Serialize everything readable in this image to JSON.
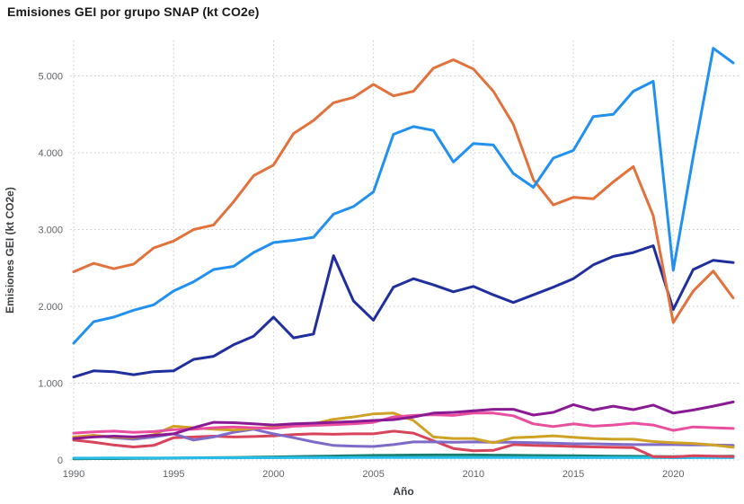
{
  "chart_data": {
    "type": "line",
    "title": "Emisiones GEI por grupo SNAP (kt CO2e)",
    "xlabel": "Año",
    "ylabel": "Emisiones GEI (kt CO2e)",
    "legend": "none",
    "grid": "dotted",
    "xlim": [
      1990,
      2023
    ],
    "ylim": [
      0,
      5500
    ],
    "x_tick_labels": [
      "1990",
      "1995",
      "2000",
      "2005",
      "2010",
      "2015",
      "2020"
    ],
    "x_tick_values": [
      1990,
      1995,
      2000,
      2005,
      2010,
      2015,
      2020
    ],
    "y_tick_labels": [
      "0",
      "1.000",
      "2.000",
      "3.000",
      "4.000",
      "5.000"
    ],
    "y_tick_values": [
      0,
      1000,
      2000,
      3000,
      4000,
      5000
    ],
    "x": [
      1990,
      1991,
      1992,
      1993,
      1994,
      1995,
      1996,
      1997,
      1998,
      1999,
      2000,
      2001,
      2002,
      2003,
      2004,
      2005,
      2006,
      2007,
      2008,
      2009,
      2010,
      2011,
      2012,
      2013,
      2014,
      2015,
      2016,
      2017,
      2018,
      2019,
      2020,
      2021,
      2022,
      2023
    ],
    "series": [
      {
        "name": "orange",
        "color": "#e2713c",
        "values": [
          2450,
          2560,
          2490,
          2550,
          2760,
          2850,
          3000,
          3060,
          3360,
          3700,
          3840,
          4250,
          4420,
          4650,
          4720,
          4890,
          4740,
          4800,
          5100,
          5210,
          5090,
          4800,
          4370,
          3650,
          3320,
          3420,
          3400,
          3620,
          3820,
          3180,
          1790,
          2200,
          2460,
          2110
        ]
      },
      {
        "name": "light-blue",
        "color": "#2190f0",
        "values": [
          1520,
          1800,
          1860,
          1950,
          2020,
          2200,
          2320,
          2480,
          2520,
          2700,
          2830,
          2860,
          2900,
          3200,
          3300,
          3490,
          4240,
          4340,
          4290,
          3880,
          4120,
          4100,
          3730,
          3550,
          3930,
          4030,
          4470,
          4500,
          4800,
          4930,
          2470,
          3950,
          5360,
          5170
        ]
      },
      {
        "name": "navy",
        "color": "#1f2f9e",
        "values": [
          1080,
          1160,
          1150,
          1110,
          1150,
          1160,
          1310,
          1350,
          1500,
          1610,
          1860,
          1590,
          1640,
          2660,
          2070,
          1820,
          2250,
          2360,
          2280,
          2190,
          2260,
          2150,
          2050,
          2150,
          2250,
          2360,
          2540,
          2650,
          2700,
          2790,
          1960,
          2480,
          2600,
          2570
        ]
      },
      {
        "name": "dark-purple",
        "color": "#8a1a93",
        "values": [
          280,
          300,
          310,
          300,
          320,
          340,
          420,
          490,
          485,
          470,
          455,
          470,
          480,
          490,
          500,
          515,
          525,
          560,
          610,
          620,
          640,
          660,
          660,
          585,
          620,
          720,
          650,
          700,
          655,
          715,
          610,
          650,
          700,
          755
        ]
      },
      {
        "name": "pink",
        "color": "#ea4f9f",
        "values": [
          350,
          365,
          375,
          360,
          370,
          395,
          400,
          420,
          430,
          420,
          410,
          440,
          450,
          460,
          470,
          490,
          560,
          580,
          590,
          580,
          610,
          610,
          575,
          470,
          435,
          470,
          440,
          455,
          480,
          455,
          385,
          430,
          420,
          410
        ]
      },
      {
        "name": "mustard",
        "color": "#cfa226",
        "values": [
          300,
          320,
          300,
          290,
          330,
          440,
          420,
          400,
          390,
          410,
          430,
          450,
          470,
          530,
          560,
          600,
          610,
          515,
          300,
          280,
          280,
          225,
          290,
          300,
          315,
          295,
          280,
          270,
          270,
          240,
          225,
          215,
          195,
          165
        ]
      },
      {
        "name": "slate-purple",
        "color": "#7e6ac8",
        "values": [
          290,
          320,
          290,
          270,
          300,
          340,
          260,
          300,
          360,
          400,
          340,
          290,
          235,
          190,
          180,
          175,
          200,
          235,
          235,
          230,
          235,
          230,
          230,
          225,
          220,
          210,
          210,
          205,
          200,
          200,
          200,
          195,
          195,
          190
        ]
      },
      {
        "name": "red",
        "color": "#d8445a",
        "values": [
          260,
          230,
          195,
          170,
          190,
          290,
          300,
          310,
          300,
          305,
          315,
          330,
          340,
          335,
          340,
          340,
          375,
          350,
          250,
          150,
          120,
          125,
          200,
          190,
          185,
          175,
          170,
          165,
          160,
          45,
          40,
          55,
          50,
          45
        ]
      },
      {
        "name": "teal",
        "color": "#177f6f",
        "values": [
          15,
          17,
          18,
          20,
          22,
          25,
          28,
          30,
          33,
          36,
          40,
          44,
          48,
          52,
          56,
          60,
          62,
          64,
          65,
          65,
          65,
          63,
          61,
          59,
          57,
          55,
          53,
          50,
          48,
          46,
          45,
          46,
          48,
          50
        ]
      },
      {
        "name": "cyan",
        "color": "#28bde8",
        "values": [
          25,
          25,
          26,
          26,
          27,
          27,
          28,
          28,
          28,
          29,
          29,
          30,
          30,
          30,
          31,
          31,
          31,
          32,
          32,
          32,
          32,
          31,
          31,
          31,
          30,
          30,
          30,
          30,
          30,
          30,
          29,
          30,
          30,
          30
        ]
      }
    ]
  }
}
